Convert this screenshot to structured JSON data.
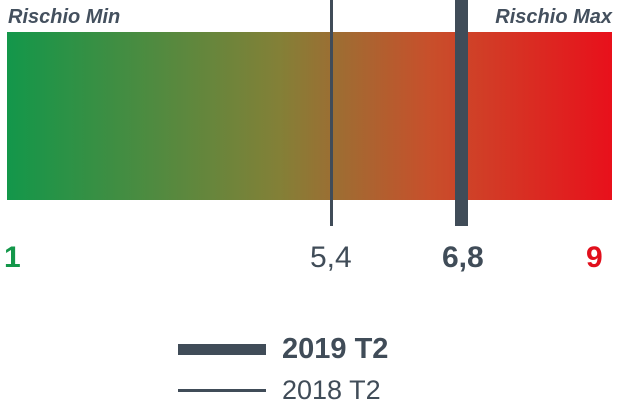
{
  "chart_data": {
    "type": "gauge",
    "scale": {
      "min": 1,
      "max": 9,
      "min_label": "1",
      "max_label": "9"
    },
    "range_labels": {
      "low": "Rischio Min",
      "high": "Rischio Max"
    },
    "gradient_colors": [
      "#13974a",
      "#838037",
      "#c84f2b",
      "#e8101b"
    ],
    "series": [
      {
        "name": "2019 T2",
        "value": 6.8,
        "value_label": "6,8",
        "style": "thick"
      },
      {
        "name": "2018 T2",
        "value": 5.4,
        "value_label": "5,4",
        "style": "thin"
      }
    ]
  }
}
